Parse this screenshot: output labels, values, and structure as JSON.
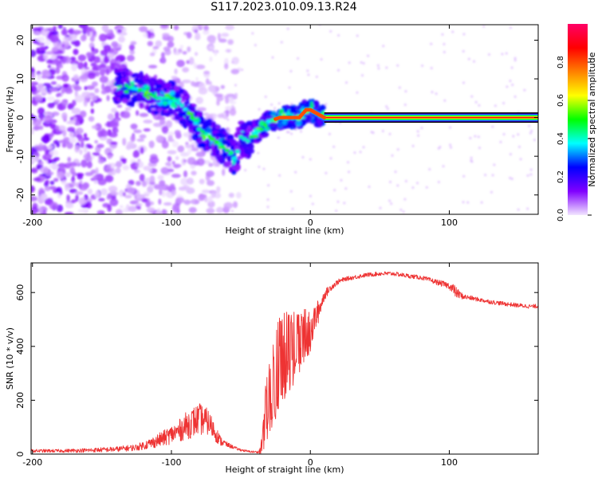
{
  "figure": {
    "title": "S117.2023.010.09.13.R24"
  },
  "chart_data": [
    {
      "type": "heatmap",
      "xlabel": "Height of straight line (km)",
      "ylabel": "Frequency (Hz)",
      "xlim": [
        -201,
        164
      ],
      "ylim": [
        -25,
        24
      ],
      "xticks": [
        -200,
        -100,
        0,
        100
      ],
      "yticks": [
        -20,
        -10,
        0,
        10,
        20
      ],
      "grid": false,
      "colorbar": {
        "label": "Normalized spectral amplitude",
        "range": [
          0,
          1
        ],
        "ticks": [
          0.0,
          0.2,
          0.4,
          0.6,
          0.8
        ],
        "colors": [
          "#f2e6ff",
          "#8000ff",
          "#0000ff",
          "#00ffff",
          "#00ff00",
          "#ffff00",
          "#ff8000",
          "#ff0000",
          "#ff0066"
        ]
      },
      "ridge": {
        "description_points_x": [
          -133,
          -120,
          -110,
          -100,
          -92,
          -85,
          -80,
          -72,
          -65,
          -58,
          -54,
          -50,
          -45,
          -40,
          -35,
          -30,
          -22,
          -15,
          -8,
          -3,
          0,
          5,
          10,
          164
        ],
        "description_points_y": [
          8,
          7,
          5,
          5,
          3,
          0,
          -3,
          -5,
          -7,
          -9,
          -11,
          -5,
          -6,
          -4,
          -3,
          -1,
          0,
          0,
          0,
          2,
          2,
          1,
          0,
          0
        ],
        "constant_line_from_x": 10,
        "constant_line_y": 0
      }
    },
    {
      "type": "line",
      "xlabel": "Height of straight line (km)",
      "ylabel": "SNR (10 * v/v)",
      "xlim": [
        -201,
        164
      ],
      "ylim": [
        0,
        710
      ],
      "xticks": [
        -200,
        -100,
        0,
        100
      ],
      "yticks": [
        0,
        200,
        400,
        600
      ],
      "grid": false,
      "series": [
        {
          "color": "#ee3333",
          "x": [
            -201,
            -180,
            -160,
            -140,
            -125,
            -115,
            -105,
            -95,
            -88,
            -80,
            -74,
            -70,
            -65,
            -60,
            -55,
            -52,
            -45,
            -40,
            -37,
            -35,
            -32,
            -30,
            -27,
            -25,
            -22,
            -20,
            -17,
            -15,
            -12,
            -10,
            -7,
            -5,
            -2,
            0,
            2,
            5,
            8,
            10,
            15,
            20,
            25,
            30,
            40,
            50,
            60,
            70,
            80,
            90,
            100,
            103,
            105,
            108,
            110,
            120,
            130,
            140,
            150,
            160,
            164
          ],
          "y": [
            12,
            12,
            14,
            18,
            25,
            40,
            60,
            85,
            110,
            130,
            120,
            95,
            50,
            35,
            25,
            18,
            10,
            8,
            8,
            20,
            160,
            220,
            260,
            300,
            340,
            360,
            370,
            380,
            400,
            410,
            420,
            440,
            450,
            460,
            490,
            520,
            560,
            590,
            620,
            640,
            650,
            655,
            665,
            670,
            670,
            662,
            655,
            640,
            625,
            610,
            600,
            590,
            585,
            575,
            565,
            558,
            552,
            548,
            550
          ],
          "noise": [
            6,
            6,
            8,
            10,
            12,
            20,
            30,
            40,
            55,
            60,
            50,
            40,
            20,
            10,
            6,
            5,
            4,
            4,
            4,
            60,
            120,
            150,
            160,
            170,
            170,
            170,
            160,
            150,
            140,
            120,
            110,
            100,
            90,
            80,
            60,
            50,
            30,
            20,
            12,
            10,
            8,
            8,
            8,
            8,
            8,
            8,
            8,
            10,
            12,
            25,
            20,
            15,
            10,
            8,
            8,
            8,
            8,
            8,
            8
          ]
        }
      ]
    }
  ]
}
